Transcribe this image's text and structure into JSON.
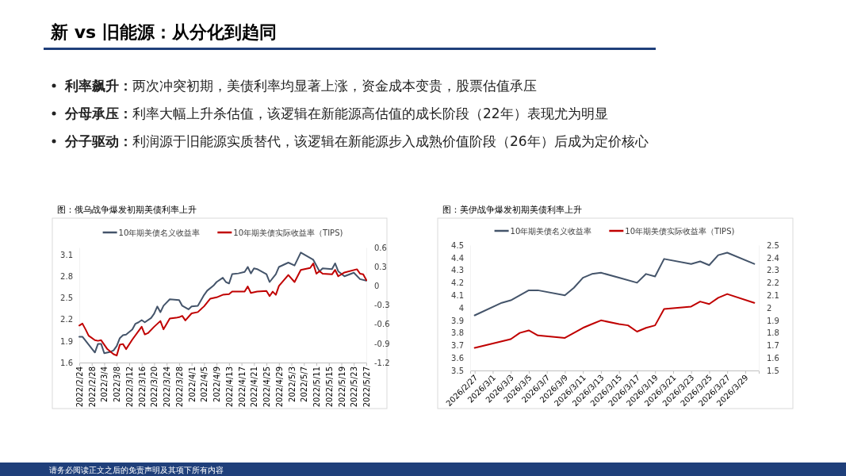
{
  "chart_data": [
    {
      "type": "other",
      "title": "新 vs 旧能源：从分化到趋同",
      "annotations": [
        "利率飙升：两次冲突初期，美债利率均显著上涨，资金成本变贵，股票估值承压",
        "分母承压：利率大幅上升杀估值，该逻辑在新能源高估值的成长阶段（22年）表现尤为明显",
        "分子驱动：利润源于旧能源实质替代，该逻辑在新能源步入成熟价值阶段（26年）后成为定价核心",
        "请务必阅读正文之后的免责声明及其项下所有内容"
      ]
    },
    {
      "type": "line",
      "title": "图：俄乌战争爆发初期美债利率上升",
      "legend": "top",
      "grid": false,
      "xlim": [
        "2022-02-24",
        "2022-05-27"
      ],
      "xticks": [
        {
          "value": "2022-02-24",
          "label": "2022/2/24"
        },
        {
          "value": "2022-02-28",
          "label": "2022/2/28"
        },
        {
          "value": "2022-03-04",
          "label": "2022/3/4"
        },
        {
          "value": "2022-03-08",
          "label": "2022/3/8"
        },
        {
          "value": "2022-03-12",
          "label": "2022/3/12"
        },
        {
          "value": "2022-03-16",
          "label": "2022/3/16"
        },
        {
          "value": "2022-03-20",
          "label": "2022/3/20"
        },
        {
          "value": "2022-03-24",
          "label": "2022/3/24"
        },
        {
          "value": "2022-03-28",
          "label": "2022/3/28"
        },
        {
          "value": "2022-04-01",
          "label": "2022/4/1"
        },
        {
          "value": "2022-04-05",
          "label": "2022/4/5"
        },
        {
          "value": "2022-04-09",
          "label": "2022/4/9"
        },
        {
          "value": "2022-04-13",
          "label": "2022/4/13"
        },
        {
          "value": "2022-04-17",
          "label": "2022/4/17"
        },
        {
          "value": "2022-04-21",
          "label": "2022/4/21"
        },
        {
          "value": "2022-04-25",
          "label": "2022/4/25"
        },
        {
          "value": "2022-04-29",
          "label": "2022/4/29"
        },
        {
          "value": "2022-05-03",
          "label": "2022/5/3"
        },
        {
          "value": "2022-05-07",
          "label": "2022/5/7"
        },
        {
          "value": "2022-05-11",
          "label": "2022/5/11"
        },
        {
          "value": "2022-05-15",
          "label": "2022/5/15"
        },
        {
          "value": "2022-05-19",
          "label": "2022/5/19"
        },
        {
          "value": "2022-05-23",
          "label": "2022/5/23"
        },
        {
          "value": "2022-05-27",
          "label": "2022/5/27"
        }
      ],
      "ylim": [
        1.6,
        3.2
      ],
      "yticks": [
        1.6,
        1.9,
        2.2,
        2.5,
        2.8,
        3.1
      ],
      "y2lim": [
        -1.2,
        0.6
      ],
      "y2ticks": [
        -1.2,
        -0.9,
        -0.6,
        -0.3,
        0,
        0.3,
        0.6
      ],
      "series": [
        {
          "name": "10年期美债名义收益率",
          "color": "#44546a",
          "x": [
            "2022-02-24",
            "2022-02-25",
            "2022-02-27",
            "2022-03-01",
            "2022-03-02",
            "2022-03-03",
            "2022-03-04",
            "2022-03-06",
            "2022-03-07",
            "2022-03-08",
            "2022-03-09",
            "2022-03-10",
            "2022-03-11",
            "2022-03-13",
            "2022-03-14",
            "2022-03-15",
            "2022-03-16",
            "2022-03-17",
            "2022-03-19",
            "2022-03-20",
            "2022-03-21",
            "2022-03-22",
            "2022-03-23",
            "2022-03-25",
            "2022-03-28",
            "2022-03-29",
            "2022-03-31",
            "2022-04-01",
            "2022-04-03",
            "2022-04-05",
            "2022-04-06",
            "2022-04-08",
            "2022-04-09",
            "2022-04-11",
            "2022-04-12",
            "2022-04-13",
            "2022-04-14",
            "2022-04-16",
            "2022-04-18",
            "2022-04-19",
            "2022-04-20",
            "2022-04-21",
            "2022-04-22",
            "2022-04-25",
            "2022-04-26",
            "2022-04-28",
            "2022-04-29",
            "2022-05-02",
            "2022-05-04",
            "2022-05-06",
            "2022-05-10",
            "2022-05-12",
            "2022-05-13",
            "2022-05-16",
            "2022-05-17",
            "2022-05-18",
            "2022-05-20",
            "2022-05-23",
            "2022-05-25",
            "2022-05-27"
          ],
          "values": [
            1.96,
            1.96,
            1.85,
            1.74,
            1.86,
            1.86,
            1.73,
            1.75,
            1.77,
            1.83,
            1.94,
            1.98,
            1.99,
            2.06,
            2.14,
            2.16,
            2.19,
            2.16,
            2.22,
            2.28,
            2.38,
            2.3,
            2.39,
            2.48,
            2.47,
            2.39,
            2.34,
            2.38,
            2.39,
            2.54,
            2.6,
            2.67,
            2.72,
            2.78,
            2.72,
            2.7,
            2.83,
            2.84,
            2.86,
            2.93,
            2.84,
            2.91,
            2.9,
            2.83,
            2.72,
            2.83,
            2.93,
            2.99,
            2.95,
            3.13,
            3.03,
            2.87,
            2.91,
            2.9,
            2.98,
            2.87,
            2.8,
            2.85,
            2.76,
            2.74
          ]
        },
        {
          "name": "10年期美债实际收益率（TIPS)",
          "color": "#c00000",
          "axis": "y2",
          "x": [
            "2022-02-24",
            "2022-02-25",
            "2022-02-26",
            "2022-02-27",
            "2022-03-01",
            "2022-03-02",
            "2022-03-03",
            "2022-03-05",
            "2022-03-07",
            "2022-03-08",
            "2022-03-09",
            "2022-03-10",
            "2022-03-11",
            "2022-03-13",
            "2022-03-16",
            "2022-03-17",
            "2022-03-18",
            "2022-03-20",
            "2022-03-22",
            "2022-03-23",
            "2022-03-25",
            "2022-03-27",
            "2022-03-28",
            "2022-03-29",
            "2022-03-30",
            "2022-04-01",
            "2022-04-03",
            "2022-04-05",
            "2022-04-07",
            "2022-04-09",
            "2022-04-11",
            "2022-04-13",
            "2022-04-14",
            "2022-04-18",
            "2022-04-19",
            "2022-04-20",
            "2022-04-22",
            "2022-04-25",
            "2022-04-26",
            "2022-04-27",
            "2022-04-28",
            "2022-04-29",
            "2022-05-02",
            "2022-05-04",
            "2022-05-06",
            "2022-05-09",
            "2022-05-10",
            "2022-05-11",
            "2022-05-12",
            "2022-05-13",
            "2022-05-16",
            "2022-05-17",
            "2022-05-18",
            "2022-05-20",
            "2022-05-24",
            "2022-05-25",
            "2022-05-26",
            "2022-05-27"
          ],
          "values": [
            -0.62,
            -0.59,
            -0.68,
            -0.78,
            -0.85,
            -0.86,
            -0.85,
            -0.99,
            -1.07,
            -1.09,
            -0.92,
            -0.91,
            -0.99,
            -0.84,
            -0.64,
            -0.76,
            -0.74,
            -0.64,
            -0.55,
            -0.68,
            -0.51,
            -0.5,
            -0.49,
            -0.47,
            -0.54,
            -0.43,
            -0.41,
            -0.32,
            -0.2,
            -0.18,
            -0.14,
            -0.13,
            -0.09,
            -0.09,
            -0.01,
            -0.11,
            -0.09,
            -0.08,
            -0.16,
            -0.09,
            -0.14,
            0.0,
            0.17,
            0.06,
            0.25,
            0.28,
            0.35,
            0.19,
            0.23,
            0.19,
            0.18,
            0.25,
            0.15,
            0.21,
            0.26,
            0.19,
            0.18,
            0.09
          ]
        }
      ]
    },
    {
      "type": "line",
      "title": "图：美伊战争爆发初期美债利率上升",
      "legend": "top",
      "grid": false,
      "xlim": [
        "2026-02-26T12:00",
        "2026-03-30T12:00"
      ],
      "xticks": [
        {
          "value": "2026-02-27",
          "label": "2026/2/27"
        },
        {
          "value": "2026-03-01",
          "label": "2026/3/1"
        },
        {
          "value": "2026-03-03",
          "label": "2026/3/3"
        },
        {
          "value": "2026-03-05",
          "label": "2026/3/5"
        },
        {
          "value": "2026-03-07",
          "label": "2026/3/7"
        },
        {
          "value": "2026-03-09",
          "label": "2026/3/9"
        },
        {
          "value": "2026-03-11",
          "label": "2026/3/11"
        },
        {
          "value": "2026-03-13",
          "label": "2026/3/13"
        },
        {
          "value": "2026-03-15",
          "label": "2026/3/15"
        },
        {
          "value": "2026-03-17",
          "label": "2026/3/17"
        },
        {
          "value": "2026-03-19",
          "label": "2026/3/19"
        },
        {
          "value": "2026-03-21",
          "label": "2026/3/21"
        },
        {
          "value": "2026-03-23",
          "label": "2026/3/23"
        },
        {
          "value": "2026-03-25",
          "label": "2026/3/25"
        },
        {
          "value": "2026-03-27",
          "label": "2026/3/27"
        },
        {
          "value": "2026-03-29",
          "label": "2026/3/29"
        }
      ],
      "ylim": [
        3.5,
        4.5
      ],
      "yticks": [
        3.5,
        3.6,
        3.7,
        3.8,
        3.9,
        4,
        4.1,
        4.2,
        4.3,
        4.4,
        4.5
      ],
      "y2lim": [
        1.5,
        2.5
      ],
      "y2ticks": [
        1.5,
        1.6,
        1.7,
        1.8,
        1.9,
        2,
        2.1,
        2.2,
        2.3,
        2.4,
        2.5
      ],
      "series": [
        {
          "name": "10年期美债名义收益率",
          "color": "#44546a",
          "x": [
            "2026-02-27",
            "2026-03-02",
            "2026-03-03",
            "2026-03-05",
            "2026-03-06",
            "2026-03-09",
            "2026-03-10",
            "2026-03-11",
            "2026-03-12",
            "2026-03-13",
            "2026-03-15",
            "2026-03-17",
            "2026-03-18",
            "2026-03-19",
            "2026-03-20",
            "2026-03-23",
            "2026-03-24",
            "2026-03-25",
            "2026-03-26",
            "2026-03-27",
            "2026-03-30"
          ],
          "values": [
            3.94,
            4.04,
            4.06,
            4.14,
            4.14,
            4.1,
            4.16,
            4.24,
            4.27,
            4.28,
            4.24,
            4.2,
            4.27,
            4.25,
            4.39,
            4.35,
            4.37,
            4.34,
            4.42,
            4.44,
            4.35
          ]
        },
        {
          "name": "10年期美债实际收益率（TIPS)",
          "color": "#c00000",
          "axis": "y2",
          "x": [
            "2026-02-27",
            "2026-03-03",
            "2026-03-04",
            "2026-03-05",
            "2026-03-06",
            "2026-03-09",
            "2026-03-11",
            "2026-03-12",
            "2026-03-13",
            "2026-03-15",
            "2026-03-16",
            "2026-03-17",
            "2026-03-18",
            "2026-03-19",
            "2026-03-20",
            "2026-03-23",
            "2026-03-24",
            "2026-03-25",
            "2026-03-26",
            "2026-03-27",
            "2026-03-30"
          ],
          "values": [
            1.68,
            1.75,
            1.8,
            1.82,
            1.78,
            1.76,
            1.84,
            1.87,
            1.9,
            1.87,
            1.86,
            1.81,
            1.84,
            1.86,
            1.99,
            2.01,
            2.05,
            2.03,
            2.08,
            2.11,
            2.04
          ]
        }
      ]
    }
  ]
}
